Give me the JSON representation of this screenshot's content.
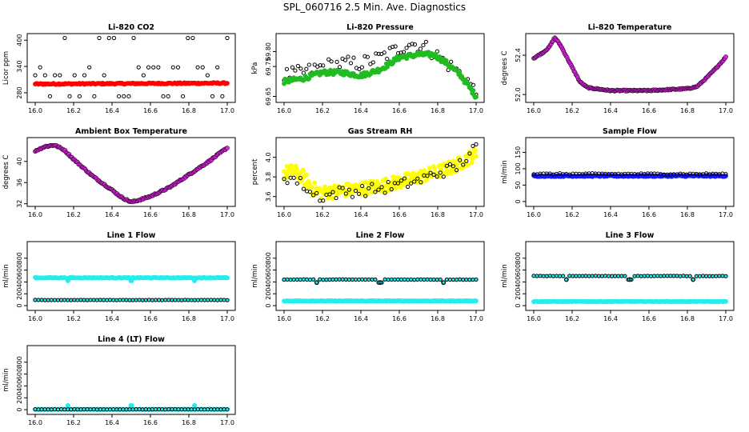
{
  "title": "SPL_060716  2.5 Min. Ave. Diagnostics",
  "colors": {
    "black": "#000000",
    "red": "#ff0000",
    "green": "#22bb22",
    "magenta": "#e020e0",
    "yellow": "#ffff00",
    "blue": "#1a1aff",
    "cyan": "#22eeee"
  },
  "chart_data": [
    {
      "type": "scatter",
      "title": "Li-820 CO2",
      "ylabel": "Licor ppm",
      "xlim": [
        16.0,
        17.0
      ],
      "ylim": [
        258,
        415
      ],
      "xticks": [
        "16.0",
        "16.2",
        "16.4",
        "16.6",
        "16.8",
        "17.0"
      ],
      "yticks": [
        {
          "v": 280,
          "t": "280"
        },
        {
          "v": 340,
          "t": "340"
        },
        {
          "v": 400,
          "t": "400"
        }
      ],
      "series": [
        {
          "name": "co2-raw",
          "color": "#000000",
          "style": "open-circle",
          "kind": "spikes",
          "base": 300,
          "levels": [
            405,
            338,
            320,
            272
          ],
          "n": 40
        },
        {
          "name": "co2-avg",
          "color": "#ff0000",
          "style": "filled-band",
          "kind": "flat",
          "start": 300,
          "end": 302,
          "amp": 1.5,
          "n": 180
        }
      ]
    },
    {
      "type": "scatter",
      "title": "Li-820 Pressure",
      "ylabel": "kPa",
      "xlim": [
        16.0,
        17.0
      ],
      "ylim": [
        69.63,
        69.86
      ],
      "xticks": [
        "16.0",
        "16.2",
        "16.4",
        "16.6",
        "16.8",
        "17.0"
      ],
      "yticks": [
        {
          "v": 69.65,
          "t": "69.65"
        },
        {
          "v": 69.75,
          "t": "69.75"
        },
        {
          "v": 69.8,
          "t": "69.80"
        }
      ],
      "series": [
        {
          "name": "pressure-raw",
          "color": "#000000",
          "style": "open-circle",
          "kind": "path",
          "jitter": 0.025,
          "n": 70,
          "points": [
            [
              16.0,
              69.72
            ],
            [
              16.1,
              69.73
            ],
            [
              16.2,
              69.75
            ],
            [
              16.3,
              69.76
            ],
            [
              16.4,
              69.76
            ],
            [
              16.5,
              69.78
            ],
            [
              16.6,
              69.81
            ],
            [
              16.65,
              69.83
            ],
            [
              16.75,
              69.81
            ],
            [
              16.85,
              69.76
            ],
            [
              16.95,
              69.71
            ],
            [
              17.0,
              69.66
            ]
          ]
        },
        {
          "name": "pressure-avg",
          "color": "#22bb22",
          "style": "filled-band",
          "kind": "path",
          "jitter": 0.008,
          "n": 200,
          "points": [
            [
              16.0,
              69.7
            ],
            [
              16.1,
              69.71
            ],
            [
              16.2,
              69.73
            ],
            [
              16.3,
              69.73
            ],
            [
              16.4,
              69.72
            ],
            [
              16.5,
              69.74
            ],
            [
              16.6,
              69.78
            ],
            [
              16.7,
              69.79
            ],
            [
              16.78,
              69.79
            ],
            [
              16.85,
              69.76
            ],
            [
              16.92,
              69.72
            ],
            [
              17.0,
              69.65
            ]
          ]
        }
      ]
    },
    {
      "type": "scatter",
      "title": "Li-820 Temperature",
      "ylabel": "degrees C",
      "xlim": [
        16.0,
        17.0
      ],
      "ylim": [
        51.92,
        52.62
      ],
      "xticks": [
        "16.0",
        "16.2",
        "16.4",
        "16.6",
        "16.8",
        "17.0"
      ],
      "yticks": [
        {
          "v": 52.0,
          "t": "52.0"
        },
        {
          "v": 52.4,
          "t": "52.4"
        }
      ],
      "series": [
        {
          "name": "licor-temp",
          "color": "#e020e0",
          "style": "filled-band",
          "kind": "path",
          "jitter": 0.006,
          "n": 220,
          "outline": true,
          "points": [
            [
              16.0,
              52.37
            ],
            [
              16.05,
              52.43
            ],
            [
              16.08,
              52.48
            ],
            [
              16.11,
              52.58
            ],
            [
              16.14,
              52.5
            ],
            [
              16.18,
              52.35
            ],
            [
              16.24,
              52.13
            ],
            [
              16.28,
              52.07
            ],
            [
              16.4,
              52.04
            ],
            [
              16.6,
              52.04
            ],
            [
              16.8,
              52.06
            ],
            [
              16.85,
              52.08
            ],
            [
              16.9,
              52.17
            ],
            [
              16.95,
              52.27
            ],
            [
              17.0,
              52.38
            ]
          ]
        }
      ]
    },
    {
      "type": "scatter",
      "title": "Ambient Box Temperature",
      "ylabel": "degrees C",
      "xlim": [
        16.0,
        17.0
      ],
      "ylim": [
        31.5,
        44.5
      ],
      "xticks": [
        "16.0",
        "16.2",
        "16.4",
        "16.6",
        "16.8",
        "17.0"
      ],
      "yticks": [
        {
          "v": 32,
          "t": "32"
        },
        {
          "v": 36,
          "t": "36"
        },
        {
          "v": 40,
          "t": "40"
        }
      ],
      "series": [
        {
          "name": "ambient-temp",
          "color": "#e020e0",
          "style": "filled-band",
          "kind": "path",
          "jitter": 0.15,
          "n": 200,
          "outline": true,
          "points": [
            [
              16.0,
              42.0
            ],
            [
              16.05,
              42.8
            ],
            [
              16.1,
              43.1
            ],
            [
              16.15,
              42.2
            ],
            [
              16.2,
              40.4
            ],
            [
              16.3,
              37.2
            ],
            [
              16.4,
              34.6
            ],
            [
              16.45,
              33.2
            ],
            [
              16.5,
              32.3
            ],
            [
              16.55,
              32.8
            ],
            [
              16.6,
              33.4
            ],
            [
              16.7,
              35.1
            ],
            [
              16.8,
              37.5
            ],
            [
              16.9,
              39.9
            ],
            [
              17.0,
              42.6
            ]
          ]
        }
      ]
    },
    {
      "type": "scatter",
      "title": "Gas Stream RH",
      "ylabel": "percent",
      "xlim": [
        16.0,
        17.0
      ],
      "ylim": [
        3.5,
        4.2
      ],
      "xticks": [
        "16.0",
        "16.2",
        "16.4",
        "16.6",
        "16.8",
        "17.0"
      ],
      "yticks": [
        {
          "v": 3.6,
          "t": "3.6"
        },
        {
          "v": 3.8,
          "t": "3.8"
        },
        {
          "v": 4.0,
          "t": "4.0"
        }
      ],
      "series": [
        {
          "name": "rh-avg",
          "color": "#ffff00",
          "style": "filled-band",
          "kind": "path",
          "jitter": 0.07,
          "n": 260,
          "points": [
            [
              16.0,
              3.84
            ],
            [
              16.05,
              3.86
            ],
            [
              16.1,
              3.8
            ],
            [
              16.15,
              3.68
            ],
            [
              16.2,
              3.64
            ],
            [
              16.3,
              3.66
            ],
            [
              16.4,
              3.68
            ],
            [
              16.5,
              3.71
            ],
            [
              16.6,
              3.75
            ],
            [
              16.7,
              3.8
            ],
            [
              16.8,
              3.85
            ],
            [
              16.9,
              3.92
            ],
            [
              17.0,
              4.04
            ]
          ]
        },
        {
          "name": "rh-raw",
          "color": "#000000",
          "style": "open-circle",
          "kind": "path",
          "jitter": 0.06,
          "n": 60,
          "points": [
            [
              16.0,
              3.8
            ],
            [
              16.05,
              3.78
            ],
            [
              16.1,
              3.72
            ],
            [
              16.15,
              3.62
            ],
            [
              16.2,
              3.6
            ],
            [
              16.3,
              3.65
            ],
            [
              16.4,
              3.66
            ],
            [
              16.5,
              3.68
            ],
            [
              16.6,
              3.72
            ],
            [
              16.7,
              3.76
            ],
            [
              16.8,
              3.84
            ],
            [
              16.9,
              3.9
            ],
            [
              17.0,
              4.1
            ]
          ]
        }
      ]
    },
    {
      "type": "scatter",
      "title": "Sample Flow",
      "ylabel": "ml/min",
      "xlim": [
        16.0,
        17.0
      ],
      "ylim": [
        -15,
        195
      ],
      "xticks": [
        "16.0",
        "16.2",
        "16.4",
        "16.6",
        "16.8",
        "17.0"
      ],
      "yticks": [
        {
          "v": 0,
          "t": "0"
        },
        {
          "v": 50,
          "t": "50"
        },
        {
          "v": 100,
          "t": "100"
        },
        {
          "v": 150,
          "t": "150"
        }
      ],
      "series": [
        {
          "name": "sample-flow-avg",
          "color": "#1a1aff",
          "style": "filled-band",
          "kind": "flat",
          "start": 78,
          "end": 78,
          "amp": 2,
          "n": 200
        },
        {
          "name": "sample-flow-raw",
          "color": "#000000",
          "style": "open-circle",
          "kind": "flat",
          "start": 84,
          "end": 84,
          "amp": 2,
          "n": 60
        }
      ]
    },
    {
      "type": "scatter",
      "title": "Line 1 Flow",
      "ylabel": "ml/min",
      "xlim": [
        16.0,
        17.0
      ],
      "ylim": [
        -80,
        1080
      ],
      "xticks": [
        "16.0",
        "16.2",
        "16.4",
        "16.6",
        "16.8",
        "17.0"
      ],
      "yticks": [
        {
          "v": 0,
          "t": "0"
        },
        {
          "v": 200,
          "t": "200"
        },
        {
          "v": 400,
          "t": "400"
        },
        {
          "v": 600,
          "t": "600"
        },
        {
          "v": 800,
          "t": "800"
        }
      ],
      "series": [
        {
          "name": "line1-flow",
          "color": "#22eeee",
          "style": "filled-band",
          "kind": "flat",
          "start": 470,
          "end": 470,
          "amp": 6,
          "n": 200,
          "dips": [
            16.17,
            16.5,
            16.83
          ],
          "dipValue": 420
        },
        {
          "name": "line1-other",
          "color": "#000000",
          "style": "open-circle",
          "kind": "flat",
          "start": 95,
          "end": 95,
          "amp": 2,
          "n": 60,
          "cyanfill": true
        }
      ]
    },
    {
      "type": "scatter",
      "title": "Line 2 Flow",
      "ylabel": "ml/min",
      "xlim": [
        16.0,
        17.0
      ],
      "ylim": [
        -80,
        1080
      ],
      "xticks": [
        "16.0",
        "16.2",
        "16.4",
        "16.6",
        "16.8",
        "17.0"
      ],
      "yticks": [
        {
          "v": 0,
          "t": "0"
        },
        {
          "v": 200,
          "t": "200"
        },
        {
          "v": 400,
          "t": "400"
        },
        {
          "v": 600,
          "t": "600"
        },
        {
          "v": 800,
          "t": "800"
        }
      ],
      "series": [
        {
          "name": "line2-other",
          "color": "#22eeee",
          "style": "filled-band",
          "kind": "flat",
          "start": 80,
          "end": 80,
          "amp": 4,
          "n": 200
        },
        {
          "name": "line2-flow",
          "color": "#000000",
          "style": "open-circle",
          "kind": "flat",
          "start": 440,
          "end": 440,
          "amp": 3,
          "n": 60,
          "cyanfill": true,
          "dips": [
            16.17,
            16.5,
            16.83
          ],
          "dipValue": 390
        }
      ]
    },
    {
      "type": "scatter",
      "title": "Line 3 Flow",
      "ylabel": "ml/min",
      "xlim": [
        16.0,
        17.0
      ],
      "ylim": [
        -80,
        1080
      ],
      "xticks": [
        "16.0",
        "16.2",
        "16.4",
        "16.6",
        "16.8",
        "17.0"
      ],
      "yticks": [
        {
          "v": 0,
          "t": "0"
        },
        {
          "v": 200,
          "t": "200"
        },
        {
          "v": 400,
          "t": "400"
        },
        {
          "v": 600,
          "t": "600"
        },
        {
          "v": 800,
          "t": "800"
        }
      ],
      "series": [
        {
          "name": "line3-other",
          "color": "#22eeee",
          "style": "filled-band",
          "kind": "flat",
          "start": 70,
          "end": 70,
          "amp": 4,
          "n": 200
        },
        {
          "name": "line3-flow",
          "color": "#000000",
          "style": "open-circle",
          "kind": "flat",
          "start": 500,
          "end": 500,
          "amp": 3,
          "n": 60,
          "cyanfill": true,
          "dips": [
            16.17,
            16.5,
            16.83
          ],
          "dipValue": 440
        }
      ]
    },
    {
      "type": "scatter",
      "title": "Line 4 (LT) Flow",
      "ylabel": "ml/min",
      "xlim": [
        16.0,
        17.0
      ],
      "ylim": [
        -80,
        1080
      ],
      "xticks": [
        "16.0",
        "16.2",
        "16.4",
        "16.6",
        "16.8",
        "17.0"
      ],
      "yticks": [
        {
          "v": 0,
          "t": "0"
        },
        {
          "v": 200,
          "t": "200"
        },
        {
          "v": 400,
          "t": "400"
        },
        {
          "v": 600,
          "t": "600"
        },
        {
          "v": 800,
          "t": "800"
        }
      ],
      "series": [
        {
          "name": "line4-flow",
          "color": "#22eeee",
          "style": "filled-band",
          "kind": "flat",
          "start": 5,
          "end": 5,
          "amp": 2,
          "n": 200,
          "dips": [
            16.17,
            16.5,
            16.83
          ],
          "dipValue": 70
        },
        {
          "name": "line4-other",
          "color": "#000000",
          "style": "open-circle",
          "kind": "flat",
          "start": 5,
          "end": 5,
          "amp": 2,
          "n": 60,
          "cyanfill": true
        }
      ]
    }
  ]
}
